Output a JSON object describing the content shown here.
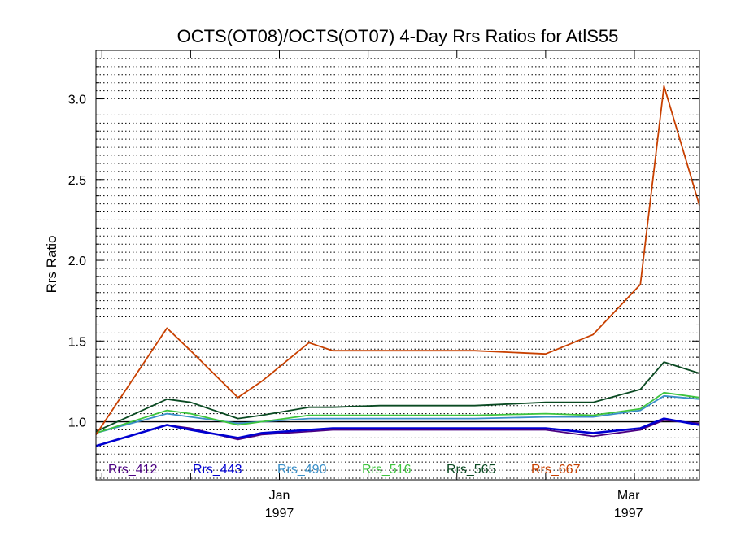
{
  "chart_data": {
    "type": "line",
    "title": "OCTS(OT08)/OCTS(OT07) 4-Day Rrs Ratios for AtlS55",
    "ylabel": "Rrs Ratio",
    "xlabel": "",
    "ylim": [
      0.64,
      3.3
    ],
    "xlim": [
      -14,
      88
    ],
    "x_axis_type": "date",
    "x_ticks": [
      {
        "value": 17,
        "month": "Jan",
        "year": "1997"
      },
      {
        "value": 76,
        "month": "Mar",
        "year": "1997"
      }
    ],
    "y_ticks": [
      1.0,
      1.5,
      2.0,
      2.5,
      3.0
    ],
    "reference_line": 1.0,
    "grid": "horizontal dotted",
    "legend_position": "bottom-left, inside plot",
    "x": [
      -14,
      -2,
      2,
      10,
      14,
      22,
      26,
      34,
      50,
      62,
      70,
      78,
      82,
      88
    ],
    "series": [
      {
        "name": "Rrs_412",
        "color": "#4b0082",
        "values": [
          0.85,
          0.98,
          0.96,
          0.89,
          0.92,
          0.94,
          0.95,
          0.95,
          0.95,
          0.95,
          0.91,
          0.95,
          1.01,
          0.99
        ]
      },
      {
        "name": "Rrs_443",
        "color": "#0000d0",
        "values": [
          0.85,
          0.98,
          0.95,
          0.9,
          0.93,
          0.95,
          0.96,
          0.96,
          0.96,
          0.96,
          0.93,
          0.96,
          1.02,
          0.98
        ]
      },
      {
        "name": "Rrs_490",
        "color": "#3a8fc8",
        "values": [
          0.93,
          1.05,
          1.03,
          0.99,
          1.0,
          1.02,
          1.02,
          1.02,
          1.02,
          1.03,
          1.03,
          1.07,
          1.16,
          1.14
        ]
      },
      {
        "name": "Rrs_516",
        "color": "#3ec43e",
        "values": [
          0.93,
          1.07,
          1.05,
          0.98,
          1.0,
          1.04,
          1.04,
          1.04,
          1.04,
          1.05,
          1.04,
          1.08,
          1.18,
          1.15
        ]
      },
      {
        "name": "Rrs_565",
        "color": "#0a4a22",
        "values": [
          0.94,
          1.14,
          1.12,
          1.02,
          1.04,
          1.09,
          1.09,
          1.1,
          1.1,
          1.12,
          1.12,
          1.2,
          1.37,
          1.3
        ]
      },
      {
        "name": "Rrs_667",
        "color": "#c84000",
        "values": [
          0.92,
          1.58,
          1.44,
          1.15,
          1.25,
          1.49,
          1.44,
          1.44,
          1.44,
          1.42,
          1.54,
          1.85,
          3.08,
          2.34
        ]
      }
    ]
  }
}
